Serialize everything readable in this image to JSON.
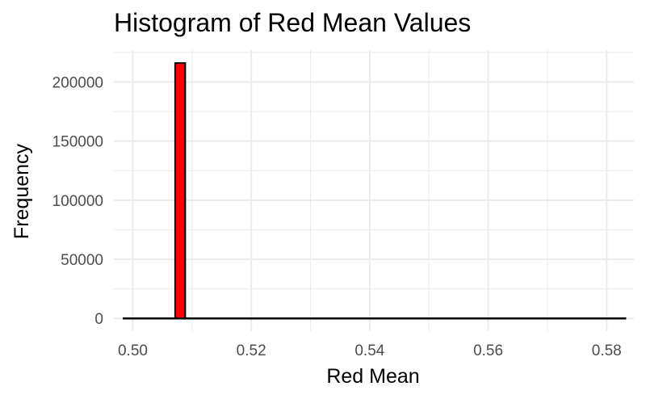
{
  "chart_data": {
    "type": "bar",
    "title": "Histogram of Red Mean Values",
    "xlabel": "Red Mean",
    "ylabel": "Frequency",
    "xlim": [
      0.4968,
      0.5846
    ],
    "ylim": [
      -10800,
      227000
    ],
    "x_ticks": [
      0.5,
      0.52,
      0.54,
      0.56,
      0.58
    ],
    "x_tick_labels": [
      "0.50",
      "0.52",
      "0.54",
      "0.56",
      "0.58"
    ],
    "y_ticks": [
      0,
      50000,
      100000,
      150000,
      200000
    ],
    "y_tick_labels": [
      "0",
      "50000",
      "100000",
      "150000",
      "200000"
    ],
    "bin_range": [
      0.4983,
      0.5833
    ],
    "bins": [
      {
        "x": 0.508,
        "value": 216000
      }
    ],
    "grid": true,
    "fill_color": "#ff0000",
    "stroke_color": "#000000",
    "grid_color": "#ebebeb"
  }
}
